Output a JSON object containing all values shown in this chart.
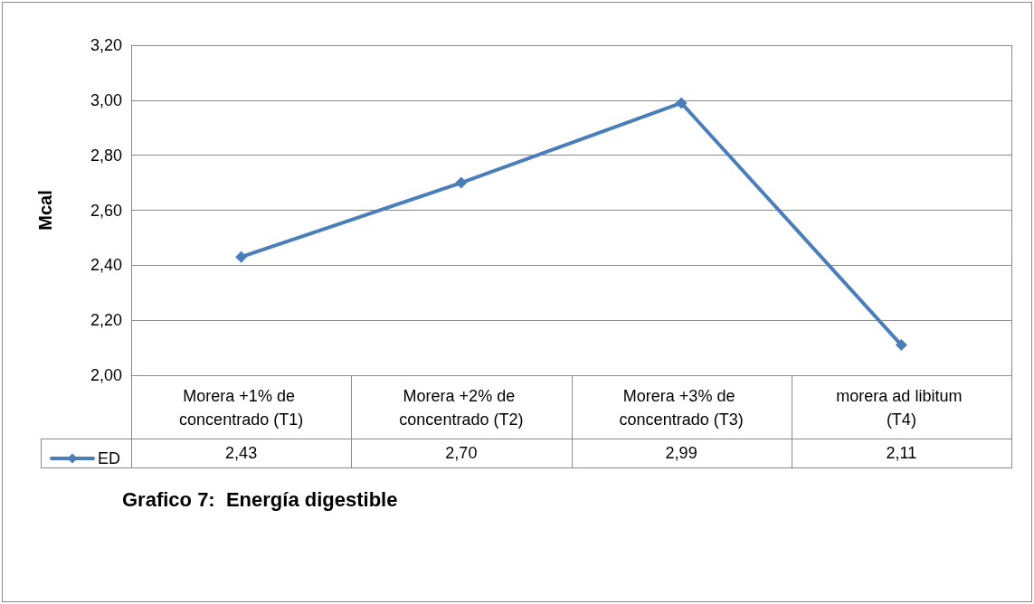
{
  "chart_data": {
    "type": "line",
    "title": "Grafico 7:  Energía digestible",
    "ylabel": "Mcal",
    "categories": [
      "Morera +1% de concentrado (T1)",
      "Morera +2% de concentrado (T2)",
      "Morera +3% de concentrado (T3)",
      "morera ad libitum (T4)"
    ],
    "series": [
      {
        "name": "ED",
        "color": "#4a7ebb",
        "values": [
          2.43,
          2.7,
          2.99,
          2.11
        ]
      }
    ],
    "value_labels": [
      "2,43",
      "2,70",
      "2,99",
      "2,11"
    ],
    "ylim": [
      2.0,
      3.2
    ],
    "yticks": [
      {
        "value": 2.0,
        "label": "2,00"
      },
      {
        "value": 2.2,
        "label": "2,20"
      },
      {
        "value": 2.4,
        "label": "2,40"
      },
      {
        "value": 2.6,
        "label": "2,60"
      },
      {
        "value": 2.8,
        "label": "2,80"
      },
      {
        "value": 3.0,
        "label": "3,00"
      },
      {
        "value": 3.2,
        "label": "3,20"
      }
    ],
    "grid": "y",
    "legend": "bottom left",
    "marker": "diamond",
    "line_style": "solid"
  }
}
